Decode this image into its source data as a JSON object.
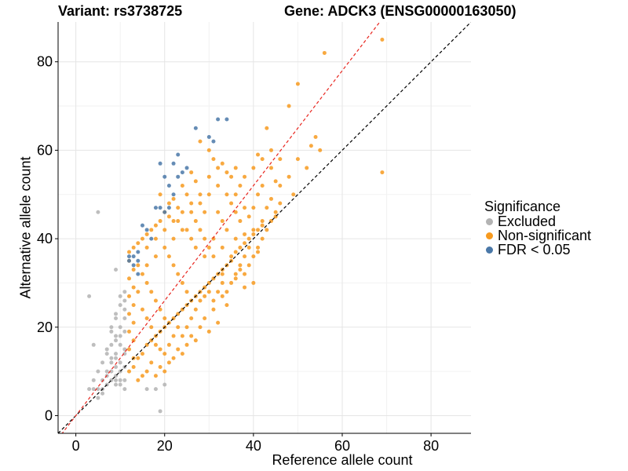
{
  "chart_data": {
    "type": "scatter",
    "title_left": "Variant: rs3738725",
    "title_right": "Gene: ADCK3 (ENSG00000163050)",
    "xlabel": "Reference allele count",
    "ylabel": "Alternative allele count",
    "xlim": [
      -4,
      89
    ],
    "ylim": [
      -4,
      89
    ],
    "xticks": [
      0,
      20,
      40,
      60,
      80
    ],
    "yticks": [
      0,
      20,
      40,
      60,
      80
    ],
    "grid": true,
    "reference_lines": [
      {
        "slope": 1.0,
        "intercept": 0,
        "color": "#000000",
        "style": "dashed"
      },
      {
        "slope": 1.3,
        "intercept": 0,
        "color": "#e8251e",
        "style": "dashed"
      }
    ],
    "legend": {
      "title": "Significance",
      "position": "right",
      "entries": [
        {
          "label": "Excluded",
          "color": "#b3b3b3"
        },
        {
          "label": "Non-significant",
          "color": "#f79a1f"
        },
        {
          "label": "FDR < 0.05",
          "color": "#4a78a8"
        }
      ]
    },
    "series": [
      {
        "name": "Excluded",
        "color": "#b3b3b3",
        "points": [
          [
            3,
            6
          ],
          [
            4,
            6
          ],
          [
            4,
            8
          ],
          [
            5,
            6
          ],
          [
            5,
            4
          ],
          [
            5,
            10
          ],
          [
            6,
            6
          ],
          [
            6,
            8
          ],
          [
            6,
            12
          ],
          [
            6,
            5
          ],
          [
            7,
            7
          ],
          [
            7,
            10
          ],
          [
            7,
            14
          ],
          [
            7,
            15
          ],
          [
            7,
            9
          ],
          [
            8,
            8
          ],
          [
            8,
            10
          ],
          [
            8,
            12
          ],
          [
            8,
            13
          ],
          [
            8,
            16
          ],
          [
            8,
            19
          ],
          [
            8,
            20
          ],
          [
            9,
            8
          ],
          [
            9,
            9
          ],
          [
            9,
            11
          ],
          [
            9,
            13
          ],
          [
            9,
            14
          ],
          [
            9,
            17
          ],
          [
            9,
            18
          ],
          [
            9,
            22
          ],
          [
            9,
            23
          ],
          [
            9,
            7
          ],
          [
            10,
            8
          ],
          [
            10,
            10
          ],
          [
            10,
            12
          ],
          [
            10,
            16
          ],
          [
            10,
            18
          ],
          [
            10,
            20
          ],
          [
            10,
            25
          ],
          [
            10,
            7
          ],
          [
            10,
            27
          ],
          [
            11,
            8
          ],
          [
            11,
            11
          ],
          [
            11,
            14
          ],
          [
            11,
            15
          ],
          [
            11,
            19
          ],
          [
            11,
            22
          ],
          [
            11,
            24
          ],
          [
            11,
            26
          ],
          [
            11,
            28
          ],
          [
            3,
            27
          ],
          [
            4,
            16
          ],
          [
            5,
            46
          ],
          [
            9,
            33
          ],
          [
            16,
            6
          ],
          [
            18,
            6
          ],
          [
            20,
            7
          ],
          [
            19,
            1
          ],
          [
            11,
            6
          ]
        ]
      },
      {
        "name": "Non-significant",
        "color": "#f79a1f",
        "points": [
          [
            69,
            85
          ],
          [
            56,
            82
          ],
          [
            50,
            75
          ],
          [
            48,
            70
          ],
          [
            43,
            65
          ],
          [
            54,
            63
          ],
          [
            53,
            61
          ],
          [
            55,
            60
          ],
          [
            41,
            59
          ],
          [
            69,
            55
          ],
          [
            45,
            53
          ],
          [
            37,
            52
          ],
          [
            41,
            50
          ],
          [
            49,
            50
          ],
          [
            46,
            48
          ],
          [
            45,
            45
          ],
          [
            42,
            44
          ],
          [
            40,
            42
          ],
          [
            38,
            41
          ],
          [
            36,
            40
          ],
          [
            39,
            38
          ],
          [
            41,
            37
          ],
          [
            38,
            36
          ],
          [
            35,
            35
          ],
          [
            37,
            33
          ],
          [
            33,
            32
          ],
          [
            36,
            31
          ],
          [
            40,
            30
          ],
          [
            38,
            29
          ],
          [
            33,
            27
          ],
          [
            34,
            25
          ],
          [
            31,
            24
          ],
          [
            29,
            22
          ],
          [
            32,
            21
          ],
          [
            28,
            20
          ],
          [
            30,
            19
          ],
          [
            26,
            18
          ],
          [
            27,
            17
          ],
          [
            25,
            16
          ],
          [
            23,
            15
          ],
          [
            24,
            14
          ],
          [
            22,
            13
          ],
          [
            21,
            12
          ],
          [
            19,
            11
          ],
          [
            20,
            10
          ],
          [
            18,
            9
          ],
          [
            14,
            8
          ],
          [
            15,
            9
          ],
          [
            16,
            10
          ],
          [
            17,
            12
          ],
          [
            12,
            10
          ],
          [
            13,
            11
          ],
          [
            14,
            13
          ],
          [
            15,
            14
          ],
          [
            16,
            16
          ],
          [
            17,
            17
          ],
          [
            18,
            18
          ],
          [
            19,
            19
          ],
          [
            20,
            20
          ],
          [
            21,
            21
          ],
          [
            22,
            22
          ],
          [
            23,
            23
          ],
          [
            24,
            24
          ],
          [
            25,
            25
          ],
          [
            26,
            26
          ],
          [
            27,
            27
          ],
          [
            28,
            28
          ],
          [
            29,
            29
          ],
          [
            30,
            30
          ],
          [
            31,
            31
          ],
          [
            32,
            32
          ],
          [
            33,
            33
          ],
          [
            34,
            34
          ],
          [
            35,
            36
          ],
          [
            36,
            37
          ],
          [
            37,
            38
          ],
          [
            38,
            39
          ],
          [
            39,
            40
          ],
          [
            40,
            41
          ],
          [
            41,
            42
          ],
          [
            42,
            43
          ],
          [
            43,
            47
          ],
          [
            44,
            49
          ],
          [
            46,
            52
          ],
          [
            48,
            54
          ],
          [
            50,
            58
          ],
          [
            52,
            56
          ],
          [
            28,
            62
          ],
          [
            30,
            60
          ],
          [
            31,
            58
          ],
          [
            33,
            57
          ],
          [
            34,
            55
          ],
          [
            35,
            54
          ],
          [
            26,
            55
          ],
          [
            27,
            53
          ],
          [
            24,
            52
          ],
          [
            25,
            50
          ],
          [
            22,
            49
          ],
          [
            23,
            47
          ],
          [
            20,
            46
          ],
          [
            21,
            45
          ],
          [
            19,
            44
          ],
          [
            18,
            43
          ],
          [
            17,
            42
          ],
          [
            16,
            41
          ],
          [
            15,
            40
          ],
          [
            14,
            39
          ],
          [
            13,
            38
          ],
          [
            12,
            37
          ],
          [
            12,
            35
          ],
          [
            13,
            33
          ],
          [
            12,
            31
          ],
          [
            13,
            29
          ],
          [
            12,
            27
          ],
          [
            13,
            25
          ],
          [
            12,
            23
          ],
          [
            13,
            21
          ],
          [
            12,
            19
          ],
          [
            13,
            17
          ],
          [
            12,
            15
          ],
          [
            13,
            13
          ],
          [
            14,
            34
          ],
          [
            15,
            32
          ],
          [
            16,
            30
          ],
          [
            17,
            28
          ],
          [
            18,
            26
          ],
          [
            19,
            24
          ],
          [
            20,
            22
          ],
          [
            21,
            36
          ],
          [
            22,
            34
          ],
          [
            23,
            32
          ],
          [
            24,
            30
          ],
          [
            25,
            28
          ],
          [
            26,
            46
          ],
          [
            27,
            44
          ],
          [
            28,
            42
          ],
          [
            29,
            40
          ],
          [
            30,
            38
          ],
          [
            31,
            36
          ],
          [
            32,
            46
          ],
          [
            33,
            44
          ],
          [
            34,
            42
          ],
          [
            35,
            48
          ],
          [
            36,
            46
          ],
          [
            37,
            44
          ],
          [
            38,
            47
          ],
          [
            39,
            45
          ],
          [
            40,
            47
          ],
          [
            36,
            50
          ],
          [
            34,
            50
          ],
          [
            32,
            52
          ],
          [
            30,
            50
          ],
          [
            28,
            48
          ],
          [
            29,
            46
          ],
          [
            26,
            40
          ],
          [
            24,
            42
          ],
          [
            22,
            40
          ],
          [
            20,
            38
          ],
          [
            18,
            36
          ],
          [
            16,
            34
          ],
          [
            14,
            28
          ],
          [
            15,
            24
          ],
          [
            16,
            22
          ],
          [
            17,
            20
          ],
          [
            18,
            16
          ],
          [
            19,
            15
          ],
          [
            20,
            14
          ],
          [
            21,
            16
          ],
          [
            22,
            18
          ],
          [
            23,
            20
          ],
          [
            24,
            18
          ],
          [
            25,
            20
          ],
          [
            26,
            22
          ],
          [
            27,
            24
          ],
          [
            28,
            26
          ],
          [
            29,
            27
          ],
          [
            30,
            28
          ],
          [
            31,
            26
          ],
          [
            32,
            28
          ],
          [
            33,
            30
          ],
          [
            34,
            28
          ],
          [
            35,
            30
          ],
          [
            36,
            32
          ],
          [
            37,
            34
          ],
          [
            38,
            32
          ],
          [
            39,
            34
          ],
          [
            40,
            36
          ],
          [
            41,
            38
          ],
          [
            42,
            40
          ],
          [
            43,
            42
          ],
          [
            44,
            44
          ],
          [
            45,
            46
          ],
          [
            19,
            50
          ],
          [
            21,
            48
          ],
          [
            23,
            44
          ],
          [
            25,
            42
          ],
          [
            27,
            38
          ],
          [
            29,
            36
          ],
          [
            31,
            40
          ],
          [
            33,
            38
          ],
          [
            16,
            38
          ],
          [
            18,
            40
          ],
          [
            20,
            42
          ],
          [
            22,
            44
          ],
          [
            24,
            46
          ],
          [
            26,
            48
          ],
          [
            28,
            50
          ],
          [
            30,
            54
          ],
          [
            32,
            56
          ],
          [
            36,
            56
          ],
          [
            38,
            54
          ],
          [
            40,
            56
          ],
          [
            42,
            58
          ],
          [
            44,
            60
          ],
          [
            46,
            58
          ],
          [
            42,
            52
          ],
          [
            44,
            56
          ]
        ]
      },
      {
        "name": "FDR < 0.05",
        "color": "#4a78a8",
        "points": [
          [
            27,
            65
          ],
          [
            32,
            67
          ],
          [
            34,
            67
          ],
          [
            30,
            63
          ],
          [
            31,
            62
          ],
          [
            23,
            59
          ],
          [
            22,
            57
          ],
          [
            24,
            55
          ],
          [
            25,
            56
          ],
          [
            19,
            57
          ],
          [
            20,
            54
          ],
          [
            23,
            54
          ],
          [
            21,
            52
          ],
          [
            22,
            50
          ],
          [
            18,
            47
          ],
          [
            19,
            47
          ],
          [
            20,
            46
          ],
          [
            21,
            47
          ],
          [
            15,
            43
          ],
          [
            16,
            42
          ],
          [
            17,
            40
          ],
          [
            12,
            36
          ],
          [
            13,
            36
          ],
          [
            14,
            37
          ],
          [
            12,
            35
          ],
          [
            14,
            35
          ],
          [
            13,
            34
          ],
          [
            14,
            32
          ]
        ]
      }
    ]
  }
}
